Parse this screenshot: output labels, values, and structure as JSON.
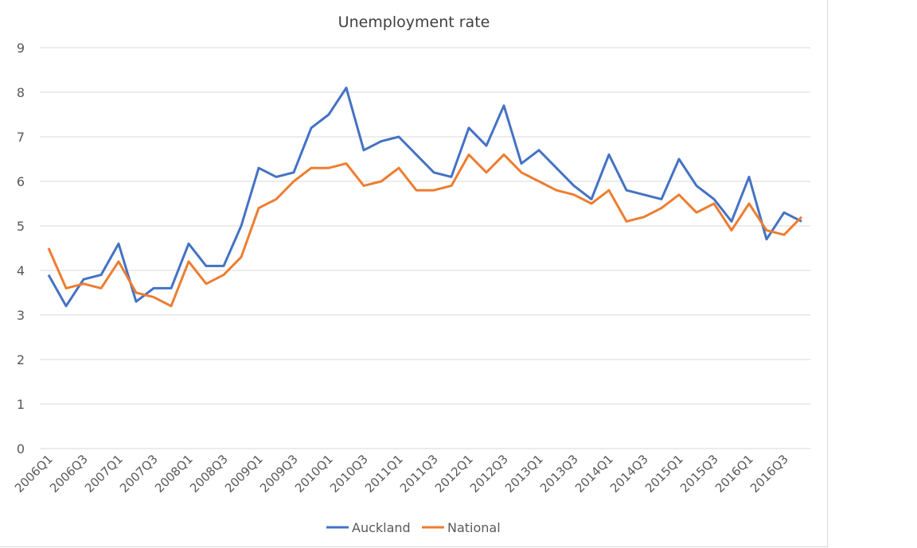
{
  "chart_data": {
    "type": "line",
    "title": "Unemployment rate",
    "xlabel": "",
    "ylabel": "",
    "ylim": [
      0,
      9
    ],
    "yticks": [
      0,
      1,
      2,
      3,
      4,
      5,
      6,
      7,
      8,
      9
    ],
    "grid": true,
    "legend": "bottom",
    "categories": [
      "2006Q1",
      "2006Q2",
      "2006Q3",
      "2006Q4",
      "2007Q1",
      "2007Q2",
      "2007Q3",
      "2007Q4",
      "2008Q1",
      "2008Q2",
      "2008Q3",
      "2008Q4",
      "2009Q1",
      "2009Q2",
      "2009Q3",
      "2009Q4",
      "2010Q1",
      "2010Q2",
      "2010Q3",
      "2010Q4",
      "2011Q1",
      "2011Q2",
      "2011Q3",
      "2011Q4",
      "2012Q1",
      "2012Q2",
      "2012Q3",
      "2012Q4",
      "2013Q1",
      "2013Q2",
      "2013Q3",
      "2013Q4",
      "2014Q1",
      "2014Q2",
      "2014Q3",
      "2014Q4",
      "2015Q1",
      "2015Q2",
      "2015Q3",
      "2015Q4",
      "2016Q1",
      "2016Q2",
      "2016Q3",
      "2016Q4"
    ],
    "tick_labels": [
      "2006Q1",
      "2006Q3",
      "2007Q1",
      "2007Q3",
      "2008Q1",
      "2008Q3",
      "2009Q1",
      "2009Q3",
      "2010Q1",
      "2010Q3",
      "2011Q1",
      "2011Q3",
      "2012Q1",
      "2012Q3",
      "2013Q1",
      "2013Q3",
      "2014Q1",
      "2014Q3",
      "2015Q1",
      "2015Q3",
      "2016Q1",
      "2016Q3"
    ],
    "series": [
      {
        "name": "Auckland",
        "color": "#4472c4",
        "values": [
          3.9,
          3.2,
          3.8,
          3.9,
          4.6,
          3.3,
          3.6,
          3.6,
          4.6,
          4.1,
          4.1,
          5.0,
          6.3,
          6.1,
          6.2,
          7.2,
          7.5,
          8.1,
          6.7,
          6.9,
          7.0,
          6.6,
          6.2,
          6.1,
          7.2,
          6.8,
          7.7,
          6.4,
          6.7,
          6.3,
          5.9,
          5.6,
          6.6,
          5.8,
          5.7,
          5.6,
          6.5,
          5.9,
          5.6,
          5.1,
          6.1,
          4.7,
          5.3,
          5.1
        ]
      },
      {
        "name": "National",
        "color": "#ed7d31",
        "values": [
          4.5,
          3.6,
          3.7,
          3.6,
          4.2,
          3.5,
          3.4,
          3.2,
          4.2,
          3.7,
          3.9,
          4.3,
          5.4,
          5.6,
          6.0,
          6.3,
          6.3,
          6.4,
          5.9,
          6.0,
          6.3,
          5.8,
          5.8,
          5.9,
          6.6,
          6.2,
          6.6,
          6.2,
          6.0,
          5.8,
          5.7,
          5.5,
          5.8,
          5.1,
          5.2,
          5.4,
          5.7,
          5.3,
          5.5,
          4.9,
          5.5,
          4.9,
          4.8,
          5.2
        ]
      }
    ]
  }
}
